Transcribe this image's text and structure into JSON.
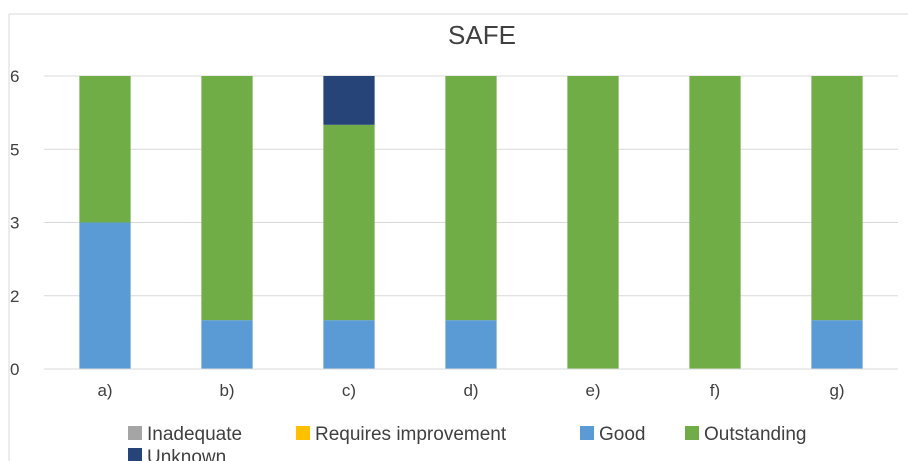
{
  "chart_data": {
    "type": "bar",
    "stacked": true,
    "title": "SAFE",
    "xlabel": "",
    "ylabel": "",
    "categories": [
      "a)",
      "b)",
      "c)",
      "d)",
      "e)",
      "f)",
      "g)"
    ],
    "y_tick_labels": [
      "0",
      "2",
      "3",
      "5",
      "6"
    ],
    "ylim": [
      0,
      1
    ],
    "series": [
      {
        "name": "Inadequate",
        "color": "#A5A5A5",
        "values": [
          0,
          0,
          0,
          0,
          0,
          0,
          0
        ]
      },
      {
        "name": "Requires improvement",
        "color": "#FFC000",
        "values": [
          0,
          0,
          0,
          0,
          0,
          0,
          0
        ]
      },
      {
        "name": "Good",
        "color": "#5B9BD5",
        "values": [
          0.5,
          0.1667,
          0.1667,
          0.1667,
          0,
          0,
          0.1667
        ]
      },
      {
        "name": "Outstanding",
        "color": "#70AD47",
        "values": [
          0.5,
          0.8333,
          0.6667,
          0.8333,
          1,
          1,
          0.8333
        ]
      },
      {
        "name": "Unknown",
        "color": "#264478",
        "values": [
          0,
          0,
          0.1667,
          0,
          0,
          0,
          0
        ]
      }
    ],
    "grid": true,
    "legend_position": "bottom"
  }
}
